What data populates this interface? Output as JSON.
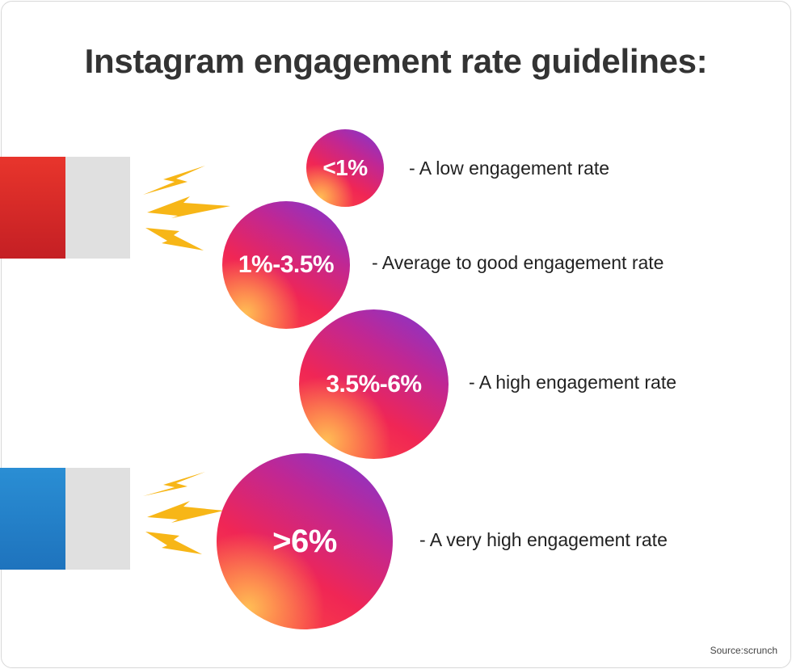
{
  "title": "Instagram engagement rate guidelines:",
  "tiers": [
    {
      "value": "<1%",
      "description": "- A low engagement rate"
    },
    {
      "value": "1%-3.5%",
      "description": "- Average to good engagement rate"
    },
    {
      "value": "3.5%-6%",
      "description": "- A high engagement rate"
    },
    {
      "value": ">6%",
      "description": "- A very high engagement rate"
    }
  ],
  "source": "Source:scrunch",
  "colors": {
    "magnet_red": "#d62a27",
    "magnet_blue": "#2682c9",
    "magnet_tip": "#e0e0e0",
    "spark": "#f7b617",
    "bubble_orange": "#ff4f3e",
    "bubble_pink": "#f02655",
    "bubble_purple": "#7a38d6",
    "text": "#333333"
  }
}
